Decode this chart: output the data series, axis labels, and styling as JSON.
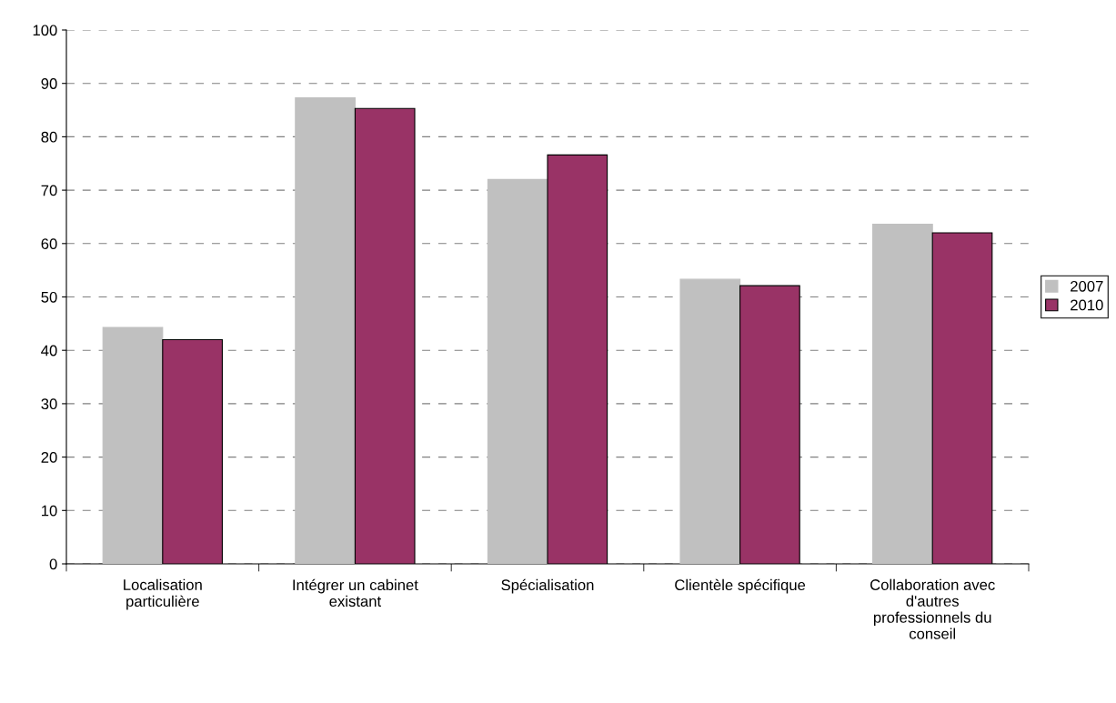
{
  "chart_data": {
    "type": "bar",
    "categories": [
      "Localisation\nparticulière",
      "Intégrer un cabinet\nexistant",
      "Spécialisation",
      "Clientèle spécifique",
      "Collaboration avec\nd'autres\nprofessionnels du\nconseil"
    ],
    "series": [
      {
        "name": "2007",
        "color": "#c0c0c0",
        "values": [
          44.3,
          87.3,
          72.0,
          53.3,
          63.6
        ]
      },
      {
        "name": "2010",
        "color": "#993366",
        "values": [
          42.0,
          85.3,
          76.6,
          52.1,
          62.0
        ]
      }
    ],
    "ylim": [
      0,
      100
    ],
    "yticks": [
      0,
      10,
      20,
      30,
      40,
      50,
      60,
      70,
      80,
      90,
      100
    ],
    "grid": "y",
    "legend": "right"
  }
}
